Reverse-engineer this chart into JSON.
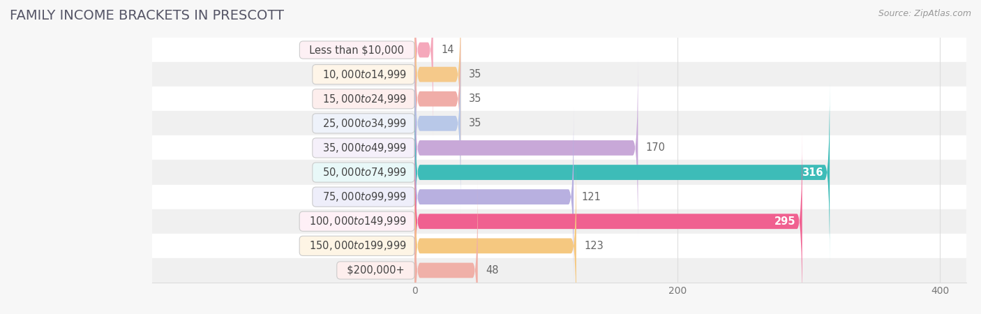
{
  "title": "FAMILY INCOME BRACKETS IN PRESCOTT",
  "source": "Source: ZipAtlas.com",
  "categories": [
    "Less than $10,000",
    "$10,000 to $14,999",
    "$15,000 to $24,999",
    "$25,000 to $34,999",
    "$35,000 to $49,999",
    "$50,000 to $74,999",
    "$75,000 to $99,999",
    "$100,000 to $149,999",
    "$150,000 to $199,999",
    "$200,000+"
  ],
  "values": [
    14,
    35,
    35,
    35,
    170,
    316,
    121,
    295,
    123,
    48
  ],
  "bar_colors": [
    "#F5A8BB",
    "#F5C98A",
    "#F0ADA8",
    "#B8C8E8",
    "#C8A8D8",
    "#3DBCB8",
    "#B8B0E0",
    "#F06090",
    "#F5C880",
    "#F0B0A8"
  ],
  "label_bg_colors": [
    "#FDF0F4",
    "#FEF5E8",
    "#FDEEED",
    "#EEF2FA",
    "#F5F0FA",
    "#E8F8F8",
    "#EEEEFA",
    "#FEF0F6",
    "#FEF5E5",
    "#FDEEED"
  ],
  "label_dot_colors": [
    "#F5A8BB",
    "#F5C98A",
    "#F0ADA8",
    "#B8C8E8",
    "#C8A8D8",
    "#3DBCB8",
    "#B8B0E0",
    "#F06090",
    "#F5C880",
    "#F0B0A8"
  ],
  "row_bg_colors": [
    "#FFFFFF",
    "#F0F0F0"
  ],
  "grid_color": "#DDDDDD",
  "xlim": [
    -200,
    420
  ],
  "xticks": [
    0,
    200,
    400
  ],
  "background_color": "#F7F7F7",
  "title_color": "#555566",
  "title_fontsize": 14,
  "source_fontsize": 9,
  "label_fontsize": 10.5,
  "value_fontsize": 10.5,
  "value_color_inside": "#FFFFFF",
  "value_color_outside": "#666666",
  "value_inside_threshold": 200
}
